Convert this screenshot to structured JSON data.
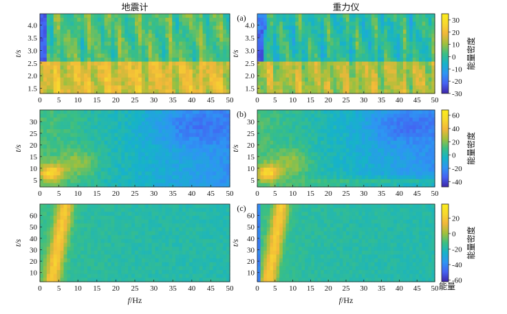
{
  "chart_data": {
    "type": "heatmap",
    "figure_labels": {
      "x_axis": "f/Hz",
      "cbar_bottom": "能量"
    },
    "x_ticks": [
      "0",
      "5",
      "10",
      "15",
      "20",
      "25",
      "30",
      "35",
      "40",
      "45",
      "50"
    ],
    "xlim": [
      0,
      50
    ],
    "colormap": [
      "#3e26a8",
      "#4561f2",
      "#2e95f3",
      "#16b3c9",
      "#3bbf83",
      "#a2c03c",
      "#f2b73a",
      "#f7d92e",
      "#fbec1c"
    ],
    "rows": [
      {
        "label": "(a)",
        "ylabel": "t/s",
        "ylim": [
          1.3,
          4.45
        ],
        "y_ticks": [
          "1.5",
          "2.0",
          "2.5",
          "3.0",
          "3.5",
          "4.0"
        ],
        "colorbar": {
          "label": "能量密度",
          "range": [
            -30,
            35
          ],
          "ticks": [
            "30",
            "20",
            "10",
            "0",
            "-10",
            "-20",
            "-30"
          ]
        },
        "panels": [
          {
            "title": "地震计",
            "instrument": "seismometer"
          },
          {
            "title": "重力仪",
            "instrument": "gravimeter"
          }
        ]
      },
      {
        "label": "(b)",
        "ylabel": "t/s",
        "ylim": [
          2,
          35
        ],
        "y_ticks": [
          "5",
          "10",
          "15",
          "20",
          "25",
          "30"
        ],
        "colorbar": {
          "label": "能量密度",
          "range": [
            -48,
            68
          ],
          "ticks": [
            "60",
            "40",
            "20",
            "0",
            "-20",
            "-40"
          ]
        },
        "panels": [
          {
            "title": "",
            "instrument": "seismometer"
          },
          {
            "title": "",
            "instrument": "gravimeter"
          }
        ]
      },
      {
        "label": "(c)",
        "ylabel": "t/s",
        "ylim": [
          2,
          70
        ],
        "y_ticks": [
          "10",
          "20",
          "30",
          "40",
          "50",
          "60"
        ],
        "colorbar": {
          "label": "能量密度",
          "range": [
            -62,
            38
          ],
          "ticks": [
            "20",
            "0",
            "-20",
            "-40",
            "-60"
          ]
        },
        "panels": [
          {
            "title": "",
            "instrument": "seismometer"
          },
          {
            "title": "",
            "instrument": "gravimeter"
          }
        ]
      }
    ]
  }
}
